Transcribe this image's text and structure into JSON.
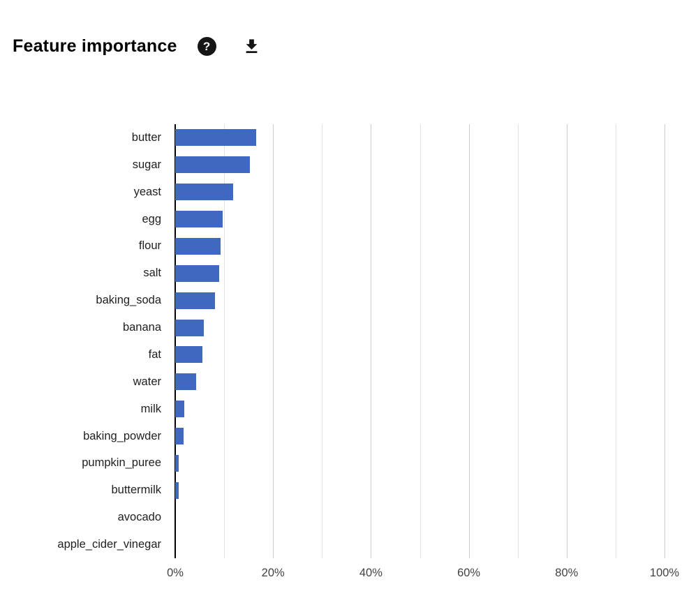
{
  "header": {
    "title": "Feature importance",
    "help_glyph": "?"
  },
  "chart_data": {
    "type": "bar",
    "orientation": "horizontal",
    "title": "Feature importance",
    "categories": [
      "butter",
      "sugar",
      "yeast",
      "egg",
      "flour",
      "salt",
      "baking_soda",
      "banana",
      "fat",
      "water",
      "milk",
      "baking_powder",
      "pumpkin_puree",
      "buttermilk",
      "avocado",
      "apple_cider_vinegar"
    ],
    "values": [
      16.5,
      15.2,
      11.9,
      9.7,
      9.3,
      9.0,
      8.1,
      5.8,
      5.5,
      4.3,
      1.9,
      1.7,
      0.7,
      0.7,
      0,
      0
    ],
    "value_unit": "%",
    "xlabel": "",
    "ylabel": "",
    "xlim": [
      0,
      100
    ],
    "x_ticks_major": [
      0,
      20,
      40,
      60,
      80,
      100
    ],
    "x_ticks_minor": [
      10,
      30,
      50,
      70,
      90
    ],
    "x_tick_labels": [
      "0%",
      "20%",
      "40%",
      "60%",
      "80%",
      "100%"
    ],
    "grid": true,
    "legend": false,
    "bar_color": "#3f68c0",
    "axis_color": "#000000",
    "gridline_major_color": "#cccccc",
    "gridline_minor_color": "#e2e2e2",
    "label_color": "#212121",
    "tick_label_color": "#424242"
  }
}
